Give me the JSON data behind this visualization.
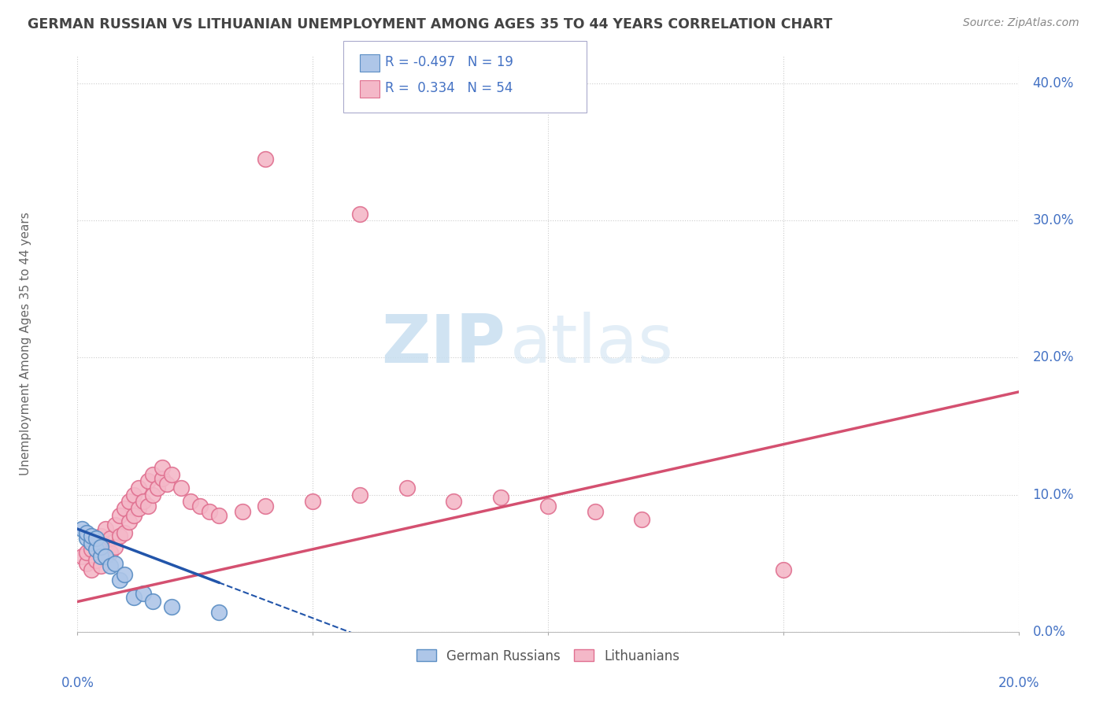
{
  "title": "GERMAN RUSSIAN VS LITHUANIAN UNEMPLOYMENT AMONG AGES 35 TO 44 YEARS CORRELATION CHART",
  "source": "Source: ZipAtlas.com",
  "ylabel": "Unemployment Among Ages 35 to 44 years",
  "r_blue": -0.497,
  "n_blue": 19,
  "r_pink": 0.334,
  "n_pink": 54,
  "watermark_zip": "ZIP",
  "watermark_atlas": "atlas",
  "blue_color": "#aec6e8",
  "blue_edge": "#5b8ec4",
  "blue_line": "#2255aa",
  "pink_color": "#f4b8c8",
  "pink_edge": "#e07090",
  "pink_line": "#d45070",
  "grid_color": "#cccccc",
  "bg_color": "#ffffff",
  "title_color": "#444444",
  "axis_label_color": "#4472c4",
  "legend_r_color": "#4472c4",
  "xmin": 0.0,
  "xmax": 0.2,
  "ymin": 0.0,
  "ymax": 0.42,
  "blue_x": [
    0.001,
    0.002,
    0.002,
    0.003,
    0.003,
    0.004,
    0.004,
    0.005,
    0.005,
    0.006,
    0.007,
    0.008,
    0.009,
    0.01,
    0.012,
    0.014,
    0.016,
    0.02,
    0.03
  ],
  "blue_y": [
    0.075,
    0.068,
    0.072,
    0.065,
    0.07,
    0.06,
    0.068,
    0.055,
    0.062,
    0.055,
    0.048,
    0.05,
    0.038,
    0.042,
    0.025,
    0.028,
    0.022,
    0.018,
    0.014
  ],
  "pink_x": [
    0.001,
    0.002,
    0.002,
    0.003,
    0.003,
    0.004,
    0.004,
    0.005,
    0.005,
    0.006,
    0.006,
    0.006,
    0.007,
    0.007,
    0.008,
    0.008,
    0.009,
    0.009,
    0.01,
    0.01,
    0.011,
    0.011,
    0.012,
    0.012,
    0.013,
    0.013,
    0.014,
    0.015,
    0.015,
    0.016,
    0.016,
    0.017,
    0.018,
    0.018,
    0.019,
    0.02,
    0.022,
    0.024,
    0.026,
    0.028,
    0.03,
    0.035,
    0.04,
    0.05,
    0.06,
    0.07,
    0.08,
    0.09,
    0.1,
    0.11,
    0.12,
    0.15,
    0.04,
    0.06
  ],
  "pink_y": [
    0.055,
    0.05,
    0.058,
    0.045,
    0.06,
    0.052,
    0.065,
    0.048,
    0.07,
    0.055,
    0.063,
    0.075,
    0.058,
    0.068,
    0.062,
    0.078,
    0.07,
    0.085,
    0.072,
    0.09,
    0.08,
    0.095,
    0.085,
    0.1,
    0.09,
    0.105,
    0.095,
    0.092,
    0.11,
    0.1,
    0.115,
    0.105,
    0.112,
    0.12,
    0.108,
    0.115,
    0.105,
    0.095,
    0.092,
    0.088,
    0.085,
    0.088,
    0.092,
    0.095,
    0.1,
    0.105,
    0.095,
    0.098,
    0.092,
    0.088,
    0.082,
    0.045,
    0.345,
    0.305
  ]
}
